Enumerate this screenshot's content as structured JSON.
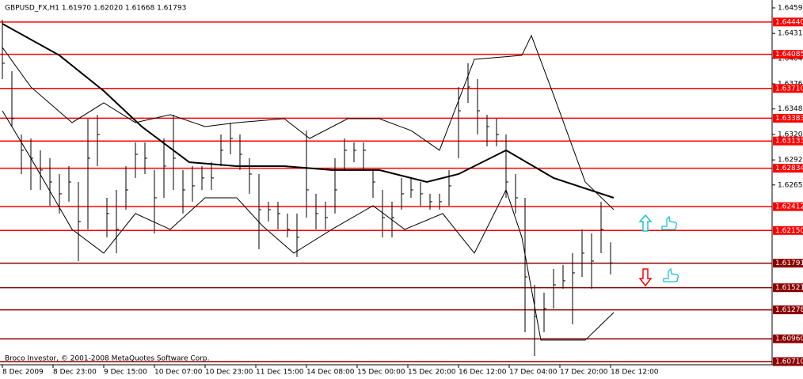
{
  "chart_data": {
    "type": "ohlc",
    "title": "GBPUSD_FX,H1  1.61970 1.62020 1.61668 1.61793",
    "footer": "Broco Investor, © 2001-2008 MetaQuotes Software Corp.",
    "color": "#000000",
    "x": [
      0,
      3,
      6,
      9,
      12,
      15,
      18,
      21,
      24,
      27,
      30,
      33,
      36,
      39,
      42,
      45,
      48,
      51,
      54,
      57,
      60,
      63,
      66,
      69,
      72,
      75,
      78,
      81,
      84,
      87,
      90,
      93,
      96,
      99,
      102,
      105,
      108,
      111,
      114,
      117,
      120,
      123,
      126,
      129,
      132,
      135,
      138,
      141,
      144,
      147,
      150,
      153,
      156,
      159,
      162,
      165,
      168,
      171,
      174,
      177,
      180,
      183,
      186,
      189,
      192
    ],
    "high": [
      1.64465,
      1.639,
      1.63205,
      1.63161,
      1.63031,
      1.62944,
      1.6277,
      1.62857,
      1.62683,
      1.63378,
      1.63422,
      1.62509,
      1.62596,
      1.62857,
      1.63118,
      1.63118,
      1.62814,
      1.63161,
      1.63422,
      1.62814,
      1.62857,
      1.62857,
      1.629,
      1.63205,
      1.63335,
      1.63205,
      1.62944,
      1.6277,
      1.62466,
      1.62466,
      1.62336,
      1.62336,
      1.63248,
      1.62553,
      1.62466,
      1.62944,
      1.63161,
      1.63118,
      1.63118,
      1.62814,
      1.62596,
      1.62466,
      1.62727,
      1.62727,
      1.62683,
      1.62553,
      1.62553,
      1.62814,
      1.63726,
      1.63987,
      1.63813,
      1.63422,
      1.63378,
      1.63205,
      1.6277,
      1.62509,
      1.61553,
      1.61467,
      1.61727,
      1.61771,
      1.61901,
      1.62162,
      1.62118,
      1.62466,
      1.6202
    ],
    "low": [
      1.63813,
      1.63291,
      1.6277,
      1.62596,
      1.62596,
      1.62422,
      1.62336,
      1.62466,
      1.61814,
      1.62162,
      1.62857,
      1.62075,
      1.61901,
      1.62379,
      1.62727,
      1.6277,
      1.62118,
      1.62509,
      1.62596,
      1.62336,
      1.62466,
      1.62596,
      1.62596,
      1.62857,
      1.62987,
      1.62814,
      1.62553,
      1.61945,
      1.62249,
      1.62162,
      1.62075,
      1.61858,
      1.62292,
      1.62162,
      1.62162,
      1.62336,
      1.62814,
      1.629,
      1.62814,
      1.62509,
      1.62075,
      1.62075,
      1.62379,
      1.62509,
      1.62422,
      1.62379,
      1.62379,
      1.62422,
      1.62944,
      1.63552,
      1.63205,
      1.63074,
      1.63074,
      1.62509,
      1.62336,
      1.61032,
      1.60771,
      1.61032,
      1.61293,
      1.6151,
      1.61119,
      1.6164,
      1.6151,
      1.61901,
      1.61668
    ],
    "close": [
      1.63987,
      1.63378,
      1.63031,
      1.62944,
      1.62814,
      1.62683,
      1.62553,
      1.62683,
      1.62249,
      1.62944,
      1.63205,
      1.62336,
      1.62162,
      1.62596,
      1.62987,
      1.62944,
      1.62509,
      1.62857,
      1.62944,
      1.62596,
      1.6264,
      1.62727,
      1.62727,
      1.63031,
      1.63161,
      1.62987,
      1.6277,
      1.62379,
      1.62379,
      1.62336,
      1.62162,
      1.62075,
      1.62596,
      1.62336,
      1.62292,
      1.62596,
      1.63031,
      1.63031,
      1.63031,
      1.62683,
      1.62292,
      1.62292,
      1.62553,
      1.62596,
      1.62553,
      1.62466,
      1.62466,
      1.6264,
      1.63465,
      1.63726,
      1.63465,
      1.63291,
      1.63205,
      1.62683,
      1.62509,
      1.6164,
      1.61206,
      1.61293,
      1.61553,
      1.61597,
      1.61684,
      1.61901,
      1.61814,
      1.62162,
      1.61793
    ],
    "lines": [
      {
        "color": "#000000",
        "width": 2,
        "x": [
          0,
          18,
          32,
          44,
          59,
          74,
          89,
          104,
          119,
          134,
          144,
          159,
          174,
          193
        ],
        "values": [
          1.64421,
          1.64074,
          1.63683,
          1.63291,
          1.629,
          1.62857,
          1.62857,
          1.62814,
          1.62814,
          1.62683,
          1.6277,
          1.63031,
          1.62727,
          1.62509
        ]
      },
      {
        "color": "#000000",
        "width": 1,
        "x": [
          0,
          9,
          22,
          32,
          42,
          53,
          64,
          74,
          89,
          97,
          109,
          119,
          129,
          138,
          149,
          164,
          167,
          174,
          184,
          193
        ],
        "values": [
          1.64161,
          1.63726,
          1.63335,
          1.63552,
          1.63335,
          1.63422,
          1.63291,
          1.63335,
          1.63378,
          1.63161,
          1.63378,
          1.63378,
          1.63248,
          1.63031,
          1.6403,
          1.64074,
          1.64291,
          1.63639,
          1.62683,
          1.62379
        ]
      },
      {
        "color": "#000000",
        "width": 1,
        "x": [
          0,
          9,
          22,
          32,
          42,
          53,
          64,
          74,
          82,
          92,
          104,
          117,
          127,
          139,
          149,
          159,
          164,
          170,
          184,
          193
        ],
        "values": [
          1.63465,
          1.62944,
          1.62162,
          1.61901,
          1.62336,
          1.62162,
          1.62509,
          1.62509,
          1.62205,
          1.61901,
          1.62162,
          1.62422,
          1.62162,
          1.62336,
          1.61901,
          1.62596,
          1.62075,
          1.60945,
          1.60945,
          1.61249
        ]
      }
    ],
    "hlines": {
      "values": [
        1.6444,
        1.64085,
        1.6371,
        1.63383,
        1.63133,
        1.62834,
        1.62412,
        1.6215,
        1.61791,
        1.61521,
        1.61278,
        1.6096,
        1.6071
      ],
      "value_labels": [
        "1.64440",
        "1.64085",
        "1.63710",
        "1.63383",
        "1.63133",
        "1.62834",
        "1.62412",
        "1.62150",
        "1.61791",
        "1.61521",
        "1.61278",
        "1.60960",
        "1.60710"
      ],
      "colors": [
        "#ff0000",
        "#ff0000",
        "#ff0000",
        "#ff0000",
        "#ff0000",
        "#ff0000",
        "#ff0000",
        "#ff0000",
        "#8b0000",
        "#8b0000",
        "#8b0000",
        "#8b0000",
        "#8b0000"
      ]
    },
    "ylim": [
      1.60675,
      1.64647
    ],
    "yticks": [
      1.64595,
      1.64315,
      {
        "value": 1.6404,
        "label": "1.64040"
      },
      {
        "value": 1.6376,
        "label": "1.63760"
      },
      1.63485,
      1.63205,
      1.62925,
      {
        "value": 1.6265,
        "label": "1.62650"
      }
    ],
    "xlim": [
      -0.75,
      243
    ],
    "xticks": [
      {
        "value": 0,
        "label": "8 Dec 2009"
      },
      {
        "value": 16,
        "label": "8 Dec 23:00"
      },
      {
        "value": 32,
        "label": "9 Dec 15:00"
      },
      {
        "value": 48,
        "label": "10 Dec 07:00"
      },
      {
        "value": 64,
        "label": "10 Dec 23:00"
      },
      {
        "value": 80,
        "label": "11 Dec 15:00"
      },
      {
        "value": 96,
        "label": "14 Dec 08:00"
      },
      {
        "value": 112,
        "label": "15 Dec 00:00"
      },
      {
        "value": 128,
        "label": "15 Dec 20:00"
      },
      {
        "value": 144,
        "label": "16 Dec 12:00"
      },
      {
        "value": 160,
        "label": "17 Dec 04:00"
      },
      {
        "value": 176,
        "label": "17 Dec 20:00"
      },
      {
        "value": 192,
        "label": "18 Dec 12:00"
      }
    ]
  }
}
